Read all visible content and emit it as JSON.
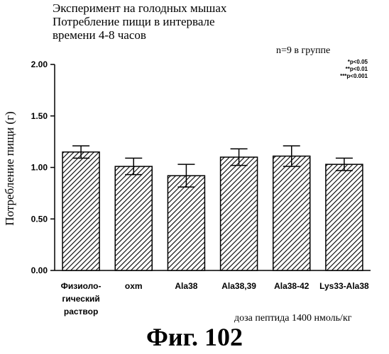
{
  "title": {
    "line1": "Эксперимент на голодных мышах",
    "line2": "Потребление пищи в интервале",
    "line3": "времени 4-8 часов"
  },
  "n_label": "n=9 в группе",
  "significance": {
    "p1": "*p<0.05",
    "p2": "**p<0.01",
    "p3": "***p<0.001"
  },
  "dose_label": "доза пептида 1400 нмоль/кг",
  "figure_label": "Фиг. 102",
  "chart_data": {
    "type": "bar",
    "title": "Эксперимент на голодных мышах Потребление пищи в интервале времени 4-8 часов",
    "ylabel": "Потребление пищи (г)",
    "xlabel": "доза пептида 1400 нмоль/кг",
    "ylim": [
      0,
      2.0
    ],
    "yticks": [
      0,
      0.5,
      1.0,
      1.5,
      2.0
    ],
    "ytick_labels": [
      "0.00",
      "0.50",
      "1.00",
      "1.50",
      "2.00"
    ],
    "categories": [
      [
        "Физиоло-",
        "гический",
        "раствор"
      ],
      [
        "oxm"
      ],
      [
        "Ala38"
      ],
      [
        "Ala38,39"
      ],
      [
        "Ala38-42"
      ],
      [
        "Lys33-Ala38"
      ]
    ],
    "values": [
      1.15,
      1.01,
      0.92,
      1.1,
      1.11,
      1.03
    ],
    "errors": [
      0.06,
      0.08,
      0.11,
      0.08,
      0.1,
      0.06
    ],
    "bar_fill": "diagonal-hatch",
    "grid": false,
    "legend": "none"
  }
}
